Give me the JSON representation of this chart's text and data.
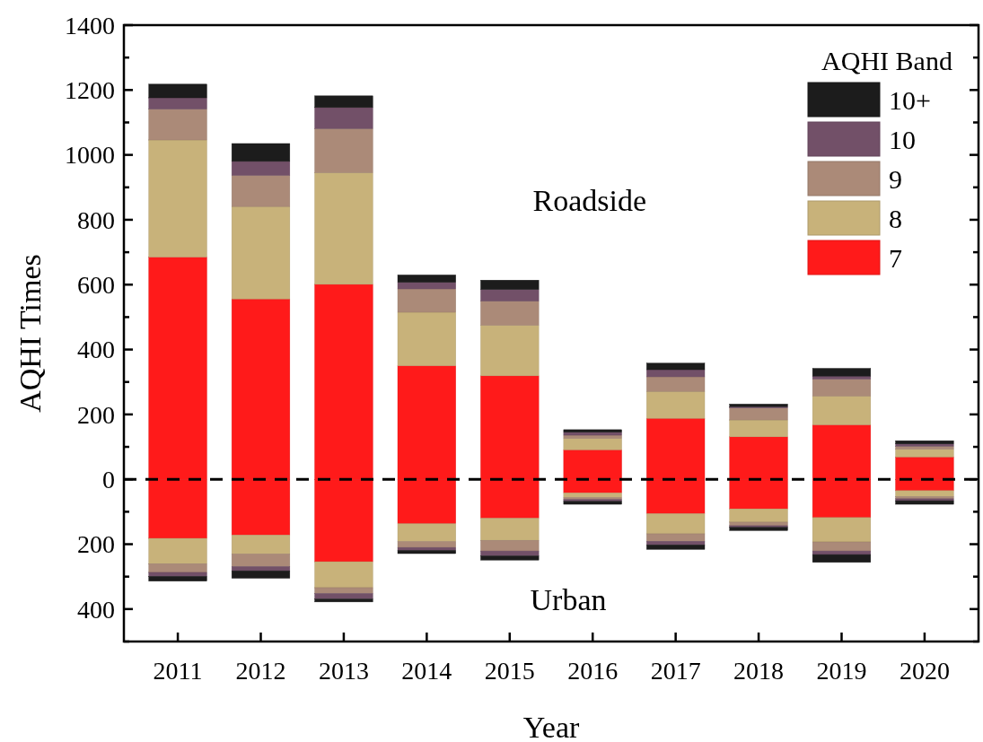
{
  "chart_data": {
    "type": "bar",
    "stacked": true,
    "xlabel": "Year",
    "ylabel": "AQHI Times",
    "legend_title": "AQHI Band",
    "legend": "top right",
    "categories": [
      "2011",
      "2012",
      "2013",
      "2014",
      "2015",
      "2016",
      "2017",
      "2018",
      "2019",
      "2020"
    ],
    "series": [
      {
        "name": "7",
        "color": "#ff1a1a",
        "values": [
          685,
          556,
          601,
          350,
          319,
          91,
          188,
          131,
          168,
          69
        ]
      },
      {
        "color": "#ff1a1a",
        "values": [
          -182,
          -172,
          -254,
          -137,
          -120,
          -42,
          -106,
          -91,
          -118,
          -35
        ]
      },
      {
        "name": "8",
        "color": "#c8b27a",
        "values": [
          361,
          285,
          344,
          165,
          156,
          35,
          83,
          52,
          89,
          24
        ]
      },
      {
        "color": "#c8b27a",
        "values": [
          -78,
          -58,
          -80,
          -55,
          -68,
          -14,
          -62,
          -41,
          -75,
          -18
        ]
      },
      {
        "name": "9",
        "color": "#ab8a78",
        "values": [
          95,
          96,
          136,
          72,
          74,
          10,
          45,
          37,
          52,
          9
        ]
      },
      {
        "color": "#ab8a78",
        "values": [
          -27,
          -39,
          -18,
          -18,
          -33,
          -6,
          -23,
          -11,
          -28,
          -7
        ]
      },
      {
        "name": "10",
        "color": "#725068",
        "values": [
          35,
          43,
          65,
          20,
          36,
          9,
          22,
          4,
          9,
          7
        ]
      },
      {
        "color": "#725068",
        "values": [
          -12,
          -13,
          -17,
          -9,
          -15,
          -6,
          -11,
          -5,
          -11,
          -6
        ]
      },
      {
        "name": "10+",
        "color": "#1c1c1c",
        "values": [
          42,
          55,
          36,
          23,
          29,
          8,
          20,
          8,
          24,
          10
        ]
      },
      {
        "color": "#1c1c1c",
        "values": [
          -15,
          -23,
          -9,
          -10,
          -13,
          -9,
          -14,
          -10,
          -24,
          -11
        ]
      }
    ],
    "ylim": [
      -500,
      1400
    ],
    "yticks": [
      {
        "value": -500,
        "label": null
      },
      {
        "value": -400,
        "label": "400"
      },
      {
        "value": -300,
        "label": null
      },
      {
        "value": -200,
        "label": "200"
      },
      {
        "value": -100,
        "label": null
      },
      0,
      {
        "value": 100,
        "label": null
      },
      200,
      {
        "value": 300,
        "label": null
      },
      400,
      {
        "value": 500,
        "label": null
      },
      600,
      {
        "value": 700,
        "label": null
      },
      800,
      {
        "value": 900,
        "label": null
      },
      1000,
      {
        "value": 1100,
        "label": null
      },
      1200,
      {
        "value": 1300,
        "label": null
      },
      1400
    ],
    "ref_lines": [
      {
        "axis": "y",
        "value": 0,
        "color": "#000000",
        "line_style": "dashed"
      }
    ],
    "annotations": [
      "Roadside",
      "Urban"
    ]
  }
}
